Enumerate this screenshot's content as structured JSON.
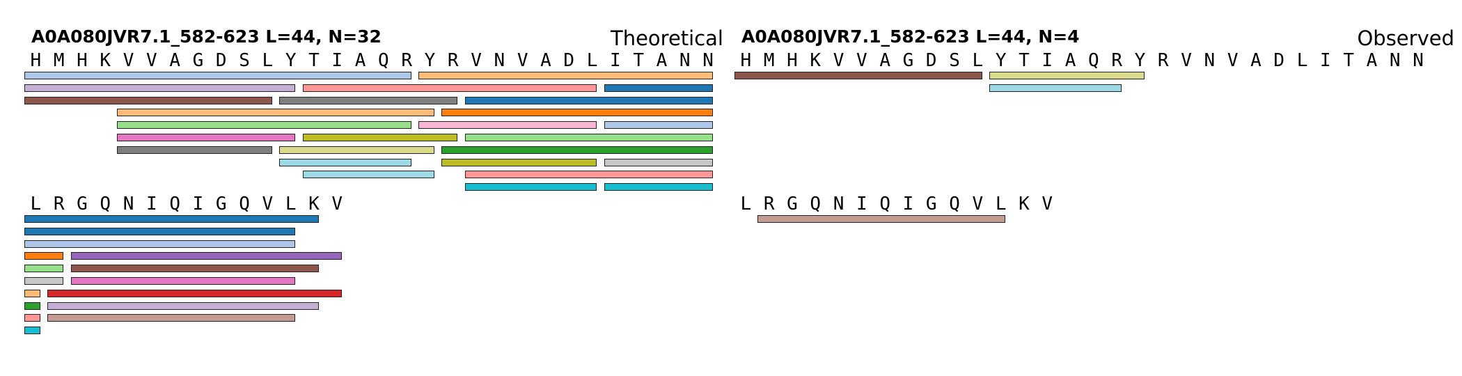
{
  "panels": [
    {
      "id": "theoretical",
      "title": "A0A080JVR7.1_582-623  L=44, N=32",
      "heading": "Theoretical",
      "sequence_rows": [
        "HMHKVVAGDSLYTIAQRYRVNVADLITANN",
        "LRGQNIQIGQVLKV"
      ],
      "peptides": [
        {
          "row": 0,
          "start": 0,
          "end": 16,
          "lane": 0,
          "color": "#aec7e8"
        },
        {
          "row": 0,
          "start": 17,
          "end": 29,
          "lane": 0,
          "color": "#ffbb78"
        },
        {
          "row": 0,
          "start": 0,
          "end": 11,
          "lane": 1,
          "color": "#c5b0d5"
        },
        {
          "row": 0,
          "start": 12,
          "end": 24,
          "lane": 1,
          "color": "#ff9896"
        },
        {
          "row": 0,
          "start": 25,
          "end": 29,
          "lane": 1,
          "color": "#1f77b4"
        },
        {
          "row": 0,
          "start": 0,
          "end": 10,
          "lane": 2,
          "color": "#8c564b"
        },
        {
          "row": 0,
          "start": 11,
          "end": 18,
          "lane": 2,
          "color": "#7f7f7f"
        },
        {
          "row": 0,
          "start": 19,
          "end": 29,
          "lane": 2,
          "color": "#1f77b4"
        },
        {
          "row": 0,
          "start": 4,
          "end": 17,
          "lane": 3,
          "color": "#ffbb78"
        },
        {
          "row": 0,
          "start": 18,
          "end": 29,
          "lane": 3,
          "color": "#ff7f0e"
        },
        {
          "row": 0,
          "start": 4,
          "end": 16,
          "lane": 4,
          "color": "#98df8a"
        },
        {
          "row": 0,
          "start": 17,
          "end": 24,
          "lane": 4,
          "color": "#f7b6d2"
        },
        {
          "row": 0,
          "start": 25,
          "end": 29,
          "lane": 4,
          "color": "#aec7e8"
        },
        {
          "row": 0,
          "start": 4,
          "end": 11,
          "lane": 5,
          "color": "#e377c2"
        },
        {
          "row": 0,
          "start": 12,
          "end": 18,
          "lane": 5,
          "color": "#bcbd22"
        },
        {
          "row": 0,
          "start": 19,
          "end": 29,
          "lane": 5,
          "color": "#98df8a"
        },
        {
          "row": 0,
          "start": 4,
          "end": 10,
          "lane": 6,
          "color": "#7f7f7f"
        },
        {
          "row": 0,
          "start": 11,
          "end": 17,
          "lane": 6,
          "color": "#dbdb8d"
        },
        {
          "row": 0,
          "start": 18,
          "end": 29,
          "lane": 6,
          "color": "#2ca02c"
        },
        {
          "row": 0,
          "start": 11,
          "end": 16,
          "lane": 7,
          "color": "#9edae5"
        },
        {
          "row": 0,
          "start": 18,
          "end": 24,
          "lane": 7,
          "color": "#bcbd22"
        },
        {
          "row": 0,
          "start": 25,
          "end": 29,
          "lane": 7,
          "color": "#c7c7c7"
        },
        {
          "row": 0,
          "start": 12,
          "end": 17,
          "lane": 8,
          "color": "#9edae5"
        },
        {
          "row": 0,
          "start": 19,
          "end": 29,
          "lane": 8,
          "color": "#ff9896"
        },
        {
          "row": 0,
          "start": 19,
          "end": 24,
          "lane": 9,
          "color": "#17becf"
        },
        {
          "row": 0,
          "start": 25,
          "end": 29,
          "lane": 9,
          "color": "#17becf"
        },
        {
          "row": 1,
          "start": 0,
          "end": 12,
          "lane": 0,
          "color": "#1f77b4"
        },
        {
          "row": 1,
          "start": 0,
          "end": 11,
          "lane": 1,
          "color": "#1f77b4"
        },
        {
          "row": 1,
          "start": 0,
          "end": 11,
          "lane": 2,
          "color": "#aec7e8"
        },
        {
          "row": 1,
          "start": 0,
          "end": 1,
          "lane": 3,
          "color": "#ff7f0e"
        },
        {
          "row": 1,
          "start": 2,
          "end": 13,
          "lane": 3,
          "color": "#9467bd"
        },
        {
          "row": 1,
          "start": 0,
          "end": 1,
          "lane": 4,
          "color": "#98df8a"
        },
        {
          "row": 1,
          "start": 2,
          "end": 12,
          "lane": 4,
          "color": "#8c564b"
        },
        {
          "row": 1,
          "start": 0,
          "end": 1,
          "lane": 5,
          "color": "#c7c7c7"
        },
        {
          "row": 1,
          "start": 2,
          "end": 11,
          "lane": 5,
          "color": "#e377c2"
        },
        {
          "row": 1,
          "start": 0,
          "end": 0,
          "lane": 6,
          "color": "#ffbb78"
        },
        {
          "row": 1,
          "start": 1,
          "end": 13,
          "lane": 6,
          "color": "#d62728"
        },
        {
          "row": 1,
          "start": 0,
          "end": 0,
          "lane": 7,
          "color": "#2ca02c"
        },
        {
          "row": 1,
          "start": 1,
          "end": 12,
          "lane": 7,
          "color": "#c5b0d5"
        },
        {
          "row": 1,
          "start": 0,
          "end": 0,
          "lane": 8,
          "color": "#ff9896"
        },
        {
          "row": 1,
          "start": 1,
          "end": 11,
          "lane": 8,
          "color": "#c49c94"
        },
        {
          "row": 1,
          "start": 0,
          "end": 0,
          "lane": 9,
          "color": "#17becf"
        }
      ]
    },
    {
      "id": "observed",
      "title": "A0A080JVR7.1_582-623  L=44, N=4",
      "heading": "Observed",
      "sequence_rows": [
        "HMHKVVAGDSLYTIAQRYRVNVADLITANN",
        "LRGQNIQIGQVLKV"
      ],
      "peptides": [
        {
          "row": 0,
          "start": 0,
          "end": 10,
          "lane": 0,
          "color": "#8c564b"
        },
        {
          "row": 0,
          "start": 11,
          "end": 17,
          "lane": 0,
          "color": "#dbdb8d"
        },
        {
          "row": 0,
          "start": 11,
          "end": 16,
          "lane": 1,
          "color": "#9edae5"
        },
        {
          "row": 1,
          "start": 1,
          "end": 11,
          "lane": 0,
          "color": "#c49c94"
        }
      ]
    }
  ]
}
